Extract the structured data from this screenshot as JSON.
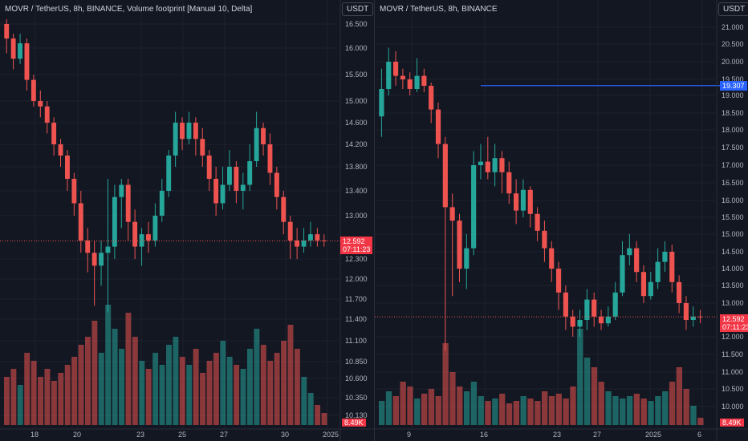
{
  "left": {
    "title": "MOVR / TetherUS, 8h, BINANCE, Volume footprint [Manual 10, Delta]",
    "unit": "USDT",
    "price_ticks": [
      "16.500",
      "16.000",
      "15.500",
      "15.000",
      "14.600",
      "14.200",
      "13.800",
      "13.400",
      "13.000",
      "12.300",
      "12.000",
      "11.700",
      "11.400",
      "11.100",
      "10.850",
      "10.600",
      "10.350",
      "10.130"
    ],
    "time_ticks": [
      "18",
      "20",
      "23",
      "25",
      "27",
      "30",
      "2025"
    ],
    "last_price": "12.592",
    "countdown": "07:11:23",
    "volume_label": "8.49K"
  },
  "right": {
    "title": "MOVR / TetherUS, 8h, BINANCE",
    "unit": "USDT",
    "price_ticks": [
      "21.000",
      "20.500",
      "20.000",
      "19.500",
      "19.000",
      "18.500",
      "18.000",
      "17.500",
      "17.000",
      "16.500",
      "16.000",
      "15.500",
      "15.000",
      "14.500",
      "14.000",
      "13.500",
      "13.000",
      "12.000",
      "11.500",
      "11.000",
      "10.500",
      "10.000"
    ],
    "time_ticks": [
      "9",
      "16",
      "23",
      "27",
      "2025",
      "6"
    ],
    "hline_price": "19.307",
    "last_price": "12.592",
    "countdown": "07:11:23",
    "volume_label": "8.49K"
  },
  "colors": {
    "up": "#26a69a",
    "down": "#ef5350",
    "blue": "#2962ff",
    "grid": "#1e222d",
    "bg": "#131722"
  },
  "chart_data": [
    {
      "type": "candlestick",
      "title": "MOVR / TetherUS, 8h, BINANCE, Volume footprint [Manual 10, Delta]",
      "x_ticks": [
        "18",
        "20",
        "23",
        "25",
        "27",
        "30",
        "2025"
      ],
      "ylim": [
        10.13,
        16.5
      ],
      "last_price": 12.592,
      "candles": [
        [
          16.5,
          16.2,
          16.6,
          15.9
        ],
        [
          16.2,
          15.8,
          16.3,
          15.6
        ],
        [
          15.8,
          16.1,
          16.3,
          15.7
        ],
        [
          16.1,
          15.4,
          16.2,
          15.2
        ],
        [
          15.4,
          15.0,
          15.5,
          14.9
        ],
        [
          15.0,
          14.9,
          15.2,
          14.7
        ],
        [
          14.9,
          14.6,
          15.0,
          14.4
        ],
        [
          14.6,
          14.2,
          14.7,
          14.0
        ],
        [
          14.2,
          14.0,
          14.3,
          13.8
        ],
        [
          14.0,
          13.6,
          14.1,
          13.4
        ],
        [
          13.6,
          13.2,
          13.7,
          13.0
        ],
        [
          13.2,
          12.6,
          13.4,
          12.4
        ],
        [
          12.6,
          12.4,
          12.8,
          12.1
        ],
        [
          12.4,
          12.2,
          12.6,
          11.6
        ],
        [
          12.2,
          12.4,
          12.6,
          11.9
        ],
        [
          12.4,
          12.5,
          13.6,
          11.5
        ],
        [
          12.5,
          13.3,
          13.5,
          12.3
        ],
        [
          13.3,
          13.5,
          13.6,
          12.8
        ],
        [
          13.5,
          12.9,
          13.6,
          12.6
        ],
        [
          12.9,
          12.5,
          13.1,
          12.3
        ],
        [
          12.5,
          12.7,
          12.8,
          12.2
        ],
        [
          12.7,
          12.6,
          12.9,
          12.4
        ],
        [
          12.6,
          13.0,
          13.2,
          12.5
        ],
        [
          13.0,
          13.4,
          13.6,
          12.9
        ],
        [
          13.4,
          14.0,
          14.1,
          13.3
        ],
        [
          14.0,
          14.6,
          14.8,
          13.8
        ],
        [
          14.6,
          14.3,
          14.7,
          14.1
        ],
        [
          14.3,
          14.6,
          14.8,
          14.2
        ],
        [
          14.6,
          14.3,
          14.7,
          14.0
        ],
        [
          14.3,
          14.0,
          14.5,
          13.8
        ],
        [
          14.0,
          13.6,
          14.1,
          13.4
        ],
        [
          13.6,
          13.2,
          13.8,
          13.0
        ],
        [
          13.2,
          13.5,
          13.8,
          13.1
        ],
        [
          13.5,
          13.8,
          14.1,
          13.4
        ],
        [
          13.8,
          13.4,
          13.9,
          13.2
        ],
        [
          13.4,
          13.5,
          13.7,
          13.1
        ],
        [
          13.5,
          13.9,
          14.2,
          13.4
        ],
        [
          13.9,
          14.5,
          14.8,
          13.8
        ],
        [
          14.5,
          14.2,
          14.6,
          14.0
        ],
        [
          14.2,
          13.7,
          14.4,
          13.5
        ],
        [
          13.7,
          13.3,
          13.8,
          13.1
        ],
        [
          13.3,
          12.9,
          13.4,
          12.7
        ],
        [
          12.9,
          12.6,
          13.0,
          12.3
        ],
        [
          12.6,
          12.5,
          12.8,
          12.3
        ],
        [
          12.5,
          12.6,
          12.8,
          12.4
        ],
        [
          12.6,
          12.7,
          12.9,
          12.5
        ],
        [
          12.7,
          12.6,
          12.8,
          12.5
        ],
        [
          12.6,
          12.592,
          12.7,
          12.5
        ]
      ],
      "volume": [
        12,
        14,
        10,
        18,
        16,
        12,
        14,
        11,
        13,
        15,
        17,
        20,
        22,
        26,
        18,
        30,
        24,
        19,
        28,
        22,
        16,
        14,
        18,
        15,
        20,
        22,
        17,
        15,
        19,
        13,
        16,
        18,
        21,
        17,
        15,
        14,
        19,
        24,
        20,
        16,
        18,
        21,
        25,
        19,
        12,
        8,
        5,
        3
      ]
    },
    {
      "type": "candlestick",
      "title": "MOVR / TetherUS, 8h, BINANCE",
      "x_ticks": [
        "9",
        "16",
        "23",
        "27",
        "2025",
        "6"
      ],
      "ylim": [
        10.0,
        21.0
      ],
      "last_price": 12.592,
      "hline": 19.307,
      "candles": [
        [
          18.4,
          19.2,
          19.8,
          17.8
        ],
        [
          19.2,
          20.0,
          20.4,
          19.0
        ],
        [
          20.0,
          19.6,
          20.3,
          19.3
        ],
        [
          19.6,
          19.5,
          19.8,
          19.2
        ],
        [
          19.5,
          19.2,
          19.7,
          19.0
        ],
        [
          19.2,
          19.6,
          20.1,
          19.1
        ],
        [
          19.6,
          19.3,
          19.8,
          19.1
        ],
        [
          19.3,
          18.6,
          19.4,
          18.2
        ],
        [
          18.6,
          17.6,
          18.8,
          17.2
        ],
        [
          17.6,
          15.8,
          17.8,
          11.6
        ],
        [
          15.8,
          15.4,
          16.2,
          13.2
        ],
        [
          15.4,
          14.0,
          15.6,
          13.6
        ],
        [
          14.0,
          14.6,
          15.0,
          13.4
        ],
        [
          14.6,
          17.0,
          17.4,
          14.4
        ],
        [
          17.0,
          17.1,
          17.6,
          16.6
        ],
        [
          17.1,
          16.8,
          17.8,
          16.6
        ],
        [
          16.8,
          17.2,
          17.6,
          16.4
        ],
        [
          17.2,
          16.8,
          17.4,
          16.2
        ],
        [
          16.8,
          16.2,
          17.1,
          15.9
        ],
        [
          16.2,
          15.7,
          16.6,
          15.3
        ],
        [
          15.7,
          16.3,
          16.6,
          15.5
        ],
        [
          16.3,
          15.6,
          16.4,
          15.2
        ],
        [
          15.6,
          15.1,
          15.8,
          14.8
        ],
        [
          15.1,
          14.6,
          15.4,
          14.2
        ],
        [
          14.6,
          14.0,
          14.8,
          13.6
        ],
        [
          14.0,
          13.3,
          14.2,
          12.8
        ],
        [
          13.3,
          12.6,
          13.5,
          12.2
        ],
        [
          12.6,
          12.3,
          12.8,
          12.0
        ],
        [
          12.3,
          12.5,
          12.8,
          12.0
        ],
        [
          12.5,
          13.1,
          13.4,
          12.2
        ],
        [
          13.1,
          12.6,
          13.3,
          12.3
        ],
        [
          12.6,
          12.4,
          12.8,
          12.2
        ],
        [
          12.4,
          12.6,
          12.9,
          12.3
        ],
        [
          12.6,
          13.3,
          13.6,
          12.5
        ],
        [
          13.3,
          14.4,
          14.8,
          13.2
        ],
        [
          14.4,
          14.6,
          15.0,
          14.1
        ],
        [
          14.6,
          13.9,
          14.8,
          13.6
        ],
        [
          13.9,
          13.2,
          14.1,
          13.0
        ],
        [
          13.2,
          13.6,
          13.9,
          13.1
        ],
        [
          13.6,
          14.2,
          14.6,
          13.4
        ],
        [
          14.2,
          14.5,
          14.8,
          13.9
        ],
        [
          14.5,
          13.6,
          14.7,
          13.3
        ],
        [
          13.6,
          13.0,
          13.8,
          12.7
        ],
        [
          13.0,
          12.5,
          13.2,
          12.2
        ],
        [
          12.5,
          12.6,
          12.9,
          12.3
        ],
        [
          12.6,
          12.592,
          12.8,
          12.4
        ]
      ],
      "volume": [
        10,
        14,
        12,
        18,
        16,
        11,
        13,
        15,
        12,
        34,
        22,
        16,
        14,
        18,
        12,
        10,
        11,
        13,
        9,
        10,
        12,
        11,
        10,
        14,
        12,
        13,
        11,
        16,
        40,
        28,
        24,
        18,
        14,
        12,
        11,
        12,
        13,
        11,
        10,
        12,
        14,
        18,
        24,
        15,
        8,
        3
      ]
    }
  ]
}
